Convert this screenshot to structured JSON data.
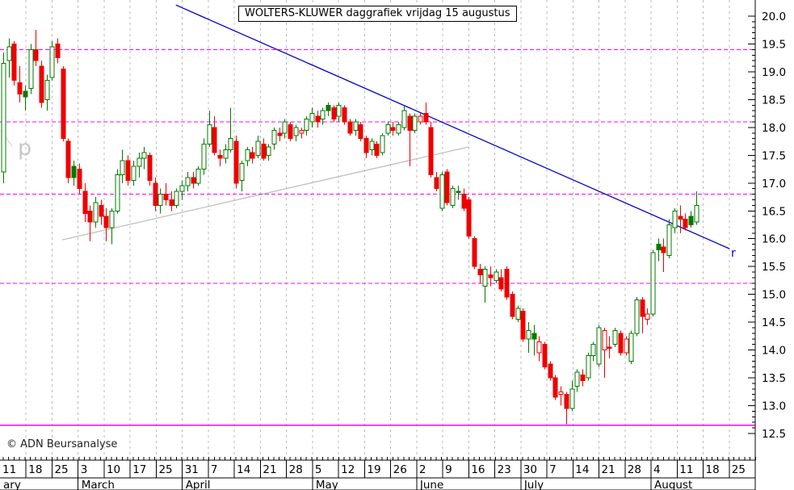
{
  "title": "WOLTERS-KLUWER daggrafiek vrijdag 15 augustus",
  "copyright": "© ADN Beursanalyse",
  "watermark": "p",
  "colors": {
    "up": "#007a00",
    "down": "#ee0000",
    "level_dashed": "#ff00ff",
    "level_solid": "#ff00ff",
    "gridline": "#bbbbbb",
    "resistance_trendline": "#0000cc",
    "support_trendline": "#c0c0c0",
    "frame": "#000000",
    "background": "#ffffff"
  },
  "chart_data": {
    "type": "candlestick",
    "title": "WOLTERS-KLUWER daggrafiek vrijdag 15 augustus",
    "y_axis": {
      "min": 12.5,
      "max": 20.0,
      "step": 0.5,
      "minor_step": 0.1,
      "tick_labels": [
        "20.0",
        "19.5",
        "19.0",
        "18.5",
        "18.0",
        "17.5",
        "17.0",
        "16.5",
        "16.0",
        "15.5",
        "15.0",
        "14.5",
        "14.0",
        "13.5",
        "13.0",
        "12.5"
      ]
    },
    "x_axis": {
      "week_labels": [
        "11",
        "18",
        "25",
        "3",
        "10",
        "17",
        "25",
        "31",
        "7",
        "14",
        "21",
        "28",
        "5",
        "12",
        "19",
        "26",
        "2",
        "9",
        "16",
        "23",
        "30",
        "7",
        "14",
        "21",
        "28",
        "4",
        "11",
        "18",
        "25"
      ],
      "months": [
        {
          "label": "ary",
          "weeks": 3
        },
        {
          "label": "March",
          "weeks": 4
        },
        {
          "label": "April",
          "weeks": 5
        },
        {
          "label": "May",
          "weeks": 4
        },
        {
          "label": "June",
          "weeks": 4
        },
        {
          "label": "July",
          "weeks": 5
        },
        {
          "label": "August",
          "weeks": 4
        }
      ]
    },
    "levels": {
      "dashed": [
        19.4,
        18.1,
        16.8,
        15.2
      ],
      "solid": [
        12.65
      ]
    },
    "trendlines": [
      {
        "name": "resistance",
        "label": "r",
        "color": "#0000cc",
        "from": {
          "day": 31.9,
          "value": 20.2
        },
        "to": {
          "day": 134.2,
          "value": 15.82
        }
      },
      {
        "name": "support",
        "label": "",
        "color": "#c0c0c0",
        "from": {
          "day": 10.9,
          "value": 15.98
        },
        "to": {
          "day": 86.0,
          "value": 17.65
        }
      }
    ],
    "candles": [
      [
        17.2,
        19.35,
        17.0,
        19.15,
        "g"
      ],
      [
        19.2,
        19.6,
        18.9,
        19.45,
        "g"
      ],
      [
        19.5,
        19.55,
        18.75,
        18.85,
        "r"
      ],
      [
        18.8,
        19.1,
        18.45,
        18.6,
        "r"
      ],
      [
        18.55,
        18.75,
        18.3,
        18.65,
        "gs"
      ],
      [
        18.7,
        19.5,
        18.6,
        19.4,
        "g"
      ],
      [
        19.4,
        19.75,
        19.1,
        19.2,
        "r"
      ],
      [
        19.1,
        19.2,
        18.35,
        18.45,
        "r"
      ],
      [
        18.5,
        18.95,
        18.3,
        18.85,
        "g"
      ],
      [
        18.9,
        19.55,
        18.85,
        19.45,
        "g"
      ],
      [
        19.5,
        19.6,
        19.15,
        19.25,
        "r"
      ],
      [
        19.05,
        19.1,
        17.75,
        17.8,
        "r"
      ],
      [
        17.75,
        17.8,
        17.0,
        17.1,
        "r"
      ],
      [
        17.1,
        17.4,
        16.95,
        17.3,
        "gs"
      ],
      [
        17.25,
        17.35,
        16.8,
        16.9,
        "r"
      ],
      [
        16.85,
        17.0,
        16.3,
        16.45,
        "r"
      ],
      [
        16.5,
        16.6,
        15.95,
        16.3,
        "r"
      ],
      [
        16.3,
        16.75,
        16.2,
        16.65,
        "g"
      ],
      [
        16.6,
        16.7,
        16.25,
        16.4,
        "r"
      ],
      [
        16.4,
        16.55,
        15.95,
        16.2,
        "r"
      ],
      [
        16.2,
        16.55,
        15.9,
        16.5,
        "g"
      ],
      [
        16.5,
        17.25,
        16.45,
        17.15,
        "g"
      ],
      [
        17.15,
        17.6,
        17.0,
        17.4,
        "g"
      ],
      [
        17.4,
        17.5,
        16.95,
        17.05,
        "r"
      ],
      [
        17.05,
        17.4,
        16.95,
        17.3,
        "g"
      ],
      [
        17.3,
        17.55,
        17.1,
        17.45,
        "g"
      ],
      [
        17.45,
        17.65,
        17.25,
        17.55,
        "g"
      ],
      [
        17.5,
        17.55,
        16.95,
        17.05,
        "r"
      ],
      [
        17.0,
        17.1,
        16.5,
        16.6,
        "r"
      ],
      [
        16.6,
        16.9,
        16.45,
        16.8,
        "g"
      ],
      [
        16.8,
        17.0,
        16.6,
        16.7,
        "r"
      ],
      [
        16.7,
        16.85,
        16.5,
        16.6,
        "r"
      ],
      [
        16.6,
        16.9,
        16.55,
        16.85,
        "g"
      ],
      [
        16.85,
        17.05,
        16.7,
        16.95,
        "g"
      ],
      [
        16.95,
        17.2,
        16.85,
        17.1,
        "g"
      ],
      [
        17.1,
        17.2,
        16.9,
        17.0,
        "r"
      ],
      [
        17.0,
        17.3,
        16.95,
        17.25,
        "g"
      ],
      [
        17.25,
        17.8,
        17.15,
        17.7,
        "g"
      ],
      [
        17.7,
        18.3,
        17.65,
        18.05,
        "g"
      ],
      [
        18.0,
        18.2,
        17.5,
        17.55,
        "r"
      ],
      [
        17.5,
        17.6,
        17.3,
        17.45,
        "r"
      ],
      [
        17.45,
        17.7,
        17.35,
        17.6,
        "g"
      ],
      [
        17.6,
        18.35,
        17.55,
        17.8,
        "g"
      ],
      [
        17.75,
        17.85,
        16.9,
        17.0,
        "r"
      ],
      [
        17.05,
        17.4,
        16.85,
        17.35,
        "g"
      ],
      [
        17.4,
        17.65,
        17.3,
        17.6,
        "g"
      ],
      [
        17.55,
        17.65,
        17.35,
        17.45,
        "r"
      ],
      [
        17.5,
        17.85,
        17.45,
        17.75,
        "g"
      ],
      [
        17.7,
        17.8,
        17.4,
        17.45,
        "r"
      ],
      [
        17.5,
        17.7,
        17.4,
        17.65,
        "g"
      ],
      [
        17.7,
        18.0,
        17.6,
        17.95,
        "g"
      ],
      [
        17.9,
        18.0,
        17.75,
        17.85,
        "r"
      ],
      [
        17.9,
        18.15,
        17.8,
        18.1,
        "g"
      ],
      [
        18.05,
        18.1,
        17.75,
        17.8,
        "r"
      ],
      [
        17.85,
        18.05,
        17.75,
        18.0,
        "g"
      ],
      [
        17.95,
        18.0,
        17.8,
        17.9,
        "rh"
      ],
      [
        17.95,
        18.2,
        17.85,
        18.15,
        "g"
      ],
      [
        18.1,
        18.35,
        18.0,
        18.25,
        "g"
      ],
      [
        18.2,
        18.3,
        18.0,
        18.1,
        "r"
      ],
      [
        18.15,
        18.35,
        18.05,
        18.3,
        "g"
      ],
      [
        18.3,
        18.45,
        18.2,
        18.4,
        "gs"
      ],
      [
        18.35,
        18.4,
        18.1,
        18.15,
        "r"
      ],
      [
        18.2,
        18.45,
        18.1,
        18.4,
        "g"
      ],
      [
        18.35,
        18.4,
        18.05,
        18.1,
        "r"
      ],
      [
        18.1,
        18.15,
        17.85,
        17.9,
        "r"
      ],
      [
        17.95,
        18.15,
        17.85,
        18.1,
        "g"
      ],
      [
        18.05,
        18.1,
        17.75,
        17.8,
        "r"
      ],
      [
        17.8,
        17.85,
        17.45,
        17.55,
        "r"
      ],
      [
        17.6,
        17.8,
        17.5,
        17.75,
        "g"
      ],
      [
        17.7,
        17.75,
        17.45,
        17.5,
        "r"
      ],
      [
        17.55,
        17.9,
        17.5,
        17.85,
        "g"
      ],
      [
        17.9,
        18.1,
        17.85,
        18.05,
        "g"
      ],
      [
        18.0,
        18.1,
        17.85,
        17.95,
        "r"
      ],
      [
        17.9,
        18.1,
        17.85,
        18.05,
        "g"
      ],
      [
        18.0,
        18.4,
        17.95,
        18.3,
        "g"
      ],
      [
        18.2,
        18.25,
        17.3,
        17.95,
        "r"
      ],
      [
        17.95,
        18.25,
        17.9,
        18.2,
        "g"
      ],
      [
        18.2,
        18.25,
        18.05,
        18.1,
        "rh"
      ],
      [
        18.25,
        18.45,
        18.05,
        18.1,
        "r"
      ],
      [
        18.0,
        18.1,
        17.1,
        17.15,
        "r"
      ],
      [
        17.1,
        17.2,
        16.85,
        16.9,
        "r"
      ],
      [
        16.55,
        17.2,
        16.5,
        17.15,
        "g"
      ],
      [
        17.2,
        17.25,
        16.6,
        16.65,
        "r"
      ],
      [
        16.6,
        16.95,
        16.55,
        16.9,
        "g"
      ],
      [
        16.85,
        16.95,
        16.7,
        16.85,
        "gs"
      ],
      [
        16.8,
        16.9,
        16.5,
        16.55,
        "r"
      ],
      [
        16.7,
        16.75,
        16.0,
        16.05,
        "r"
      ],
      [
        16.0,
        16.05,
        15.45,
        15.5,
        "r"
      ],
      [
        15.45,
        15.55,
        15.2,
        15.35,
        "r"
      ],
      [
        15.15,
        15.5,
        14.85,
        15.45,
        "g"
      ],
      [
        15.35,
        15.5,
        15.15,
        15.3,
        "r"
      ],
      [
        15.25,
        15.45,
        15.2,
        15.4,
        "g"
      ],
      [
        15.3,
        15.45,
        15.05,
        15.1,
        "r"
      ],
      [
        15.45,
        15.5,
        14.9,
        14.95,
        "r"
      ],
      [
        15.0,
        15.05,
        14.55,
        14.6,
        "r"
      ],
      [
        14.55,
        14.8,
        14.5,
        14.75,
        "g"
      ],
      [
        14.7,
        14.75,
        14.15,
        14.2,
        "r"
      ],
      [
        14.2,
        14.5,
        13.95,
        14.35,
        "g"
      ],
      [
        14.3,
        14.45,
        13.9,
        14.2,
        "gs"
      ],
      [
        14.15,
        14.25,
        13.8,
        13.95,
        "rh"
      ],
      [
        14.1,
        14.15,
        13.65,
        13.7,
        "r"
      ],
      [
        13.75,
        13.8,
        13.45,
        13.5,
        "r"
      ],
      [
        13.5,
        13.55,
        13.1,
        13.15,
        "r"
      ],
      [
        13.2,
        13.35,
        13.0,
        13.25,
        "rh"
      ],
      [
        13.2,
        13.25,
        12.67,
        12.95,
        "r"
      ],
      [
        12.95,
        13.45,
        12.9,
        13.3,
        "g"
      ],
      [
        13.35,
        13.65,
        13.25,
        13.6,
        "g"
      ],
      [
        13.55,
        13.65,
        13.35,
        13.45,
        "r"
      ],
      [
        13.5,
        13.95,
        13.45,
        13.9,
        "g"
      ],
      [
        13.9,
        14.15,
        13.8,
        14.1,
        "g"
      ],
      [
        13.75,
        14.45,
        13.7,
        14.4,
        "g"
      ],
      [
        14.35,
        14.4,
        13.5,
        14.0,
        "rh"
      ],
      [
        14.05,
        14.25,
        13.85,
        14.05,
        "r"
      ],
      [
        14.1,
        14.4,
        14.05,
        14.35,
        "g"
      ],
      [
        14.3,
        14.35,
        13.9,
        13.95,
        "r"
      ],
      [
        14.2,
        14.25,
        13.9,
        13.95,
        "rh"
      ],
      [
        13.8,
        14.35,
        13.75,
        14.3,
        "g"
      ],
      [
        14.3,
        14.95,
        14.25,
        14.9,
        "g"
      ],
      [
        14.9,
        14.95,
        14.3,
        14.6,
        "r"
      ],
      [
        14.55,
        14.75,
        14.45,
        14.65,
        "rh"
      ],
      [
        14.65,
        15.8,
        14.6,
        15.75,
        "g"
      ],
      [
        15.8,
        16.0,
        15.6,
        15.9,
        "gs"
      ],
      [
        15.85,
        16.0,
        15.4,
        15.75,
        "r"
      ],
      [
        15.7,
        16.35,
        15.65,
        16.25,
        "g"
      ],
      [
        16.2,
        16.55,
        16.1,
        16.5,
        "g"
      ],
      [
        16.4,
        16.6,
        16.1,
        16.35,
        "r"
      ],
      [
        16.35,
        16.45,
        16.15,
        16.2,
        "r"
      ],
      [
        16.25,
        16.5,
        16.2,
        16.4,
        "gs"
      ],
      [
        16.3,
        16.85,
        16.25,
        16.6,
        "g"
      ]
    ]
  },
  "resistance_label": "r"
}
